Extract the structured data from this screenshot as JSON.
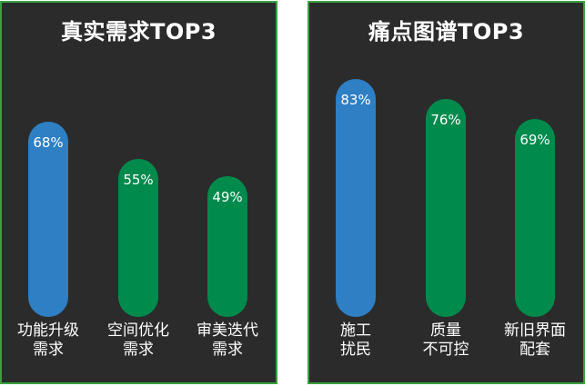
{
  "chart_data": [
    {
      "type": "bar",
      "title": "真实需求TOP3",
      "categories": [
        [
          "功能升级",
          "需求"
        ],
        [
          "空间优化",
          "需求"
        ],
        [
          "审美迭代",
          "需求"
        ]
      ],
      "values": [
        68,
        55,
        49
      ],
      "value_labels": [
        "68%",
        "55%",
        "49%"
      ],
      "ylim": [
        0,
        100
      ],
      "colors": [
        "#2e7fc4",
        "#008a4c",
        "#008a4c"
      ]
    },
    {
      "type": "bar",
      "title": "痛点图谱TOP3",
      "categories": [
        [
          "施工",
          "扰民"
        ],
        [
          "质量",
          "不可控"
        ],
        [
          "新旧界面",
          "配套"
        ]
      ],
      "values": [
        83,
        76,
        69
      ],
      "value_labels": [
        "83%",
        "76%",
        "69%"
      ],
      "ylim": [
        0,
        100
      ],
      "colors": [
        "#2e7fc4",
        "#008a4c",
        "#008a4c"
      ]
    }
  ]
}
